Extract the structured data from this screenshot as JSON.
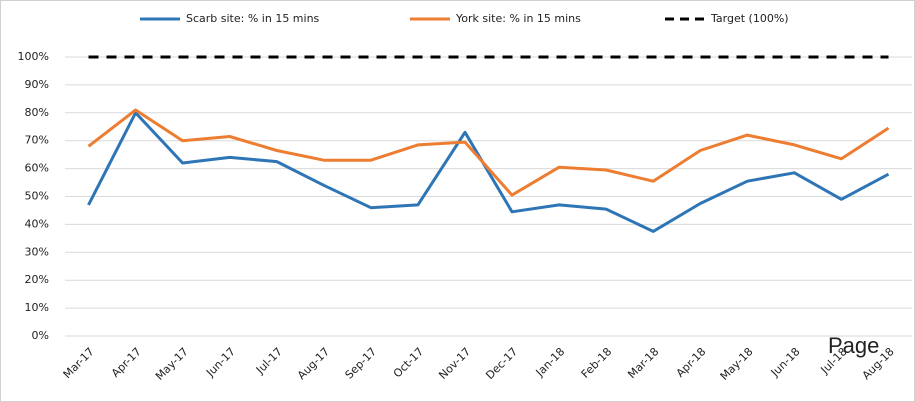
{
  "chart_data": {
    "type": "line",
    "categories": [
      "Mar-17",
      "Apr-17",
      "May-17",
      "Jun-17",
      "Jul-17",
      "Aug-17",
      "Sep-17",
      "Oct-17",
      "Nov-17",
      "Dec-17",
      "Jan-18",
      "Feb-18",
      "Mar-18",
      "Apr-18",
      "May-18",
      "Jun-18",
      "Jul-18",
      "Aug-18"
    ],
    "series": [
      {
        "name": "Scarb site: % in 15 mins",
        "color": "#2e75b6",
        "values": [
          47,
          80,
          62,
          64,
          62.5,
          54,
          46,
          47,
          73,
          44.5,
          47,
          45.5,
          37.5,
          47.5,
          55.5,
          58.5,
          49,
          58
        ]
      },
      {
        "name": "York site: % in 15 mins",
        "color": "#ed7d31",
        "values": [
          68,
          81,
          70,
          71.5,
          66.5,
          63,
          63,
          68.5,
          69.5,
          50.5,
          60.5,
          59.5,
          55.5,
          66.5,
          72,
          68.5,
          63.5,
          74.5
        ]
      },
      {
        "name": "Target (100%)",
        "color": "#000000",
        "dashed": true,
        "values": [
          100,
          100,
          100,
          100,
          100,
          100,
          100,
          100,
          100,
          100,
          100,
          100,
          100,
          100,
          100,
          100,
          100,
          100
        ]
      }
    ],
    "ylim": [
      0,
      100
    ],
    "yticks": [
      {
        "value": 0,
        "label": "0%"
      },
      {
        "value": 10,
        "label": "10%"
      },
      {
        "value": 20,
        "label": "20%"
      },
      {
        "value": 30,
        "label": "30%"
      },
      {
        "value": 40,
        "label": "40%"
      },
      {
        "value": 50,
        "label": "50%"
      },
      {
        "value": 60,
        "label": "60%"
      },
      {
        "value": 70,
        "label": "70%"
      },
      {
        "value": 80,
        "label": "80%"
      },
      {
        "value": 90,
        "label": "90%"
      },
      {
        "value": 100,
        "label": "100%"
      }
    ],
    "grid": true,
    "legend": "top",
    "annotation": "Page"
  }
}
